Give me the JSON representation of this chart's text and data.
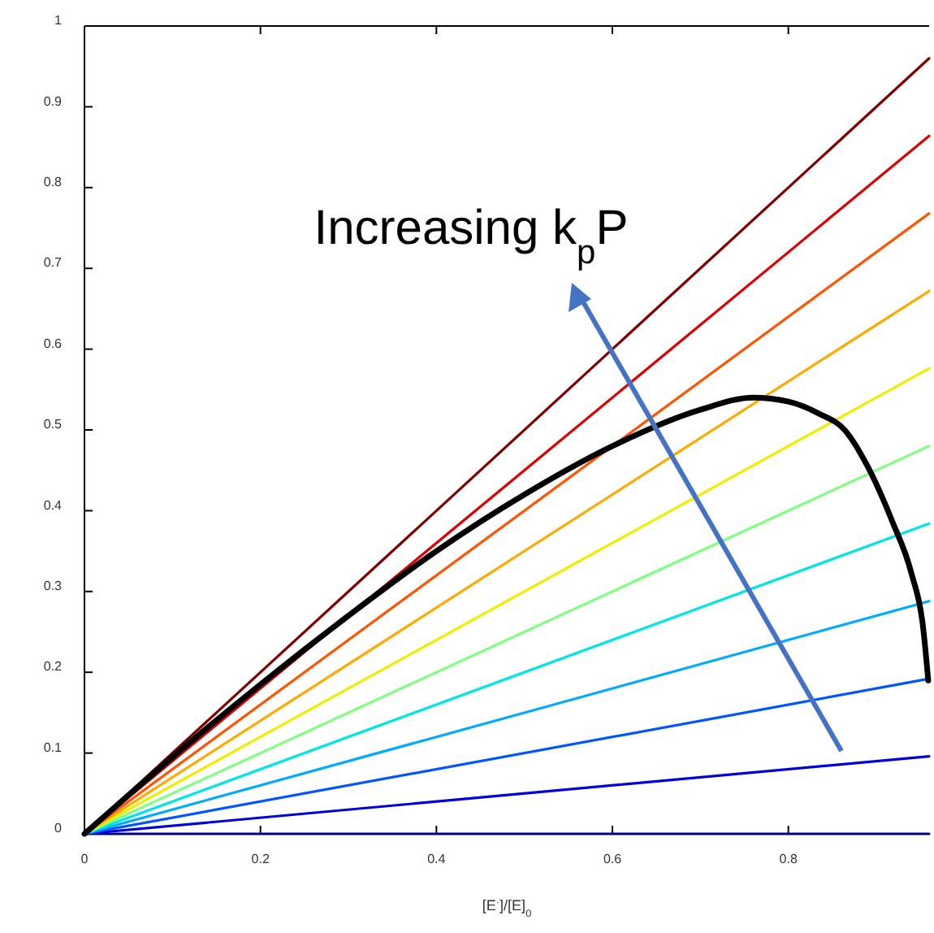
{
  "chart_data": {
    "type": "line",
    "xlabel": "[E$^{·}$]/[E]$_{0}$",
    "xlim": [
      0,
      0.96
    ],
    "xticks": [
      0,
      0.2,
      0.4,
      0.6,
      0.8
    ],
    "ylim": [
      0,
      1
    ],
    "yticks": [
      0,
      0.1,
      0.2,
      0.3,
      0.4,
      0.5,
      0.6,
      0.7,
      0.8,
      0.9,
      1
    ],
    "grid": false,
    "marker": "none",
    "line_style": "solid",
    "annotations": [
      "Increasing k$_{p}$P"
    ],
    "series": [
      {
        "color": "#000080",
        "x": [
          0,
          0.96
        ],
        "values": [
          0,
          0
        ]
      },
      {
        "color": "#0000dd",
        "x": [
          0,
          0.96
        ],
        "values": [
          0,
          0.096
        ]
      },
      {
        "color": "#0055ff",
        "x": [
          0,
          0.96
        ],
        "values": [
          0,
          0.192
        ]
      },
      {
        "color": "#00aaff",
        "x": [
          0,
          0.96
        ],
        "values": [
          0,
          0.288
        ]
      },
      {
        "color": "#00e5e5",
        "x": [
          0,
          0.96
        ],
        "values": [
          0,
          0.384
        ]
      },
      {
        "color": "#80ff80",
        "x": [
          0,
          0.96
        ],
        "values": [
          0,
          0.48
        ]
      },
      {
        "color": "#eeee00",
        "x": [
          0,
          0.96
        ],
        "values": [
          0,
          0.576
        ]
      },
      {
        "color": "#ffaa00",
        "x": [
          0,
          0.96
        ],
        "values": [
          0,
          0.672
        ]
      },
      {
        "color": "#ff5500",
        "x": [
          0,
          0.96
        ],
        "values": [
          0,
          0.768
        ]
      },
      {
        "color": "#e00000",
        "x": [
          0,
          0.96
        ],
        "values": [
          0,
          0.864
        ]
      },
      {
        "color": "#800000",
        "x": [
          0,
          0.96
        ],
        "values": [
          0,
          0.96
        ]
      },
      {
        "color": "#000000",
        "x": [
          0,
          0.1,
          0.2,
          0.3,
          0.4,
          0.5,
          0.6,
          0.7,
          0.76,
          0.8,
          0.835,
          0.864,
          0.89,
          0.918,
          0.94,
          0.953,
          0.959
        ],
        "values": [
          0,
          0.095,
          0.185,
          0.27,
          0.35,
          0.42,
          0.48,
          0.525,
          0.54,
          0.535,
          0.52,
          0.5,
          0.455,
          0.387,
          0.322,
          0.257,
          0.19
        ]
      }
    ]
  }
}
